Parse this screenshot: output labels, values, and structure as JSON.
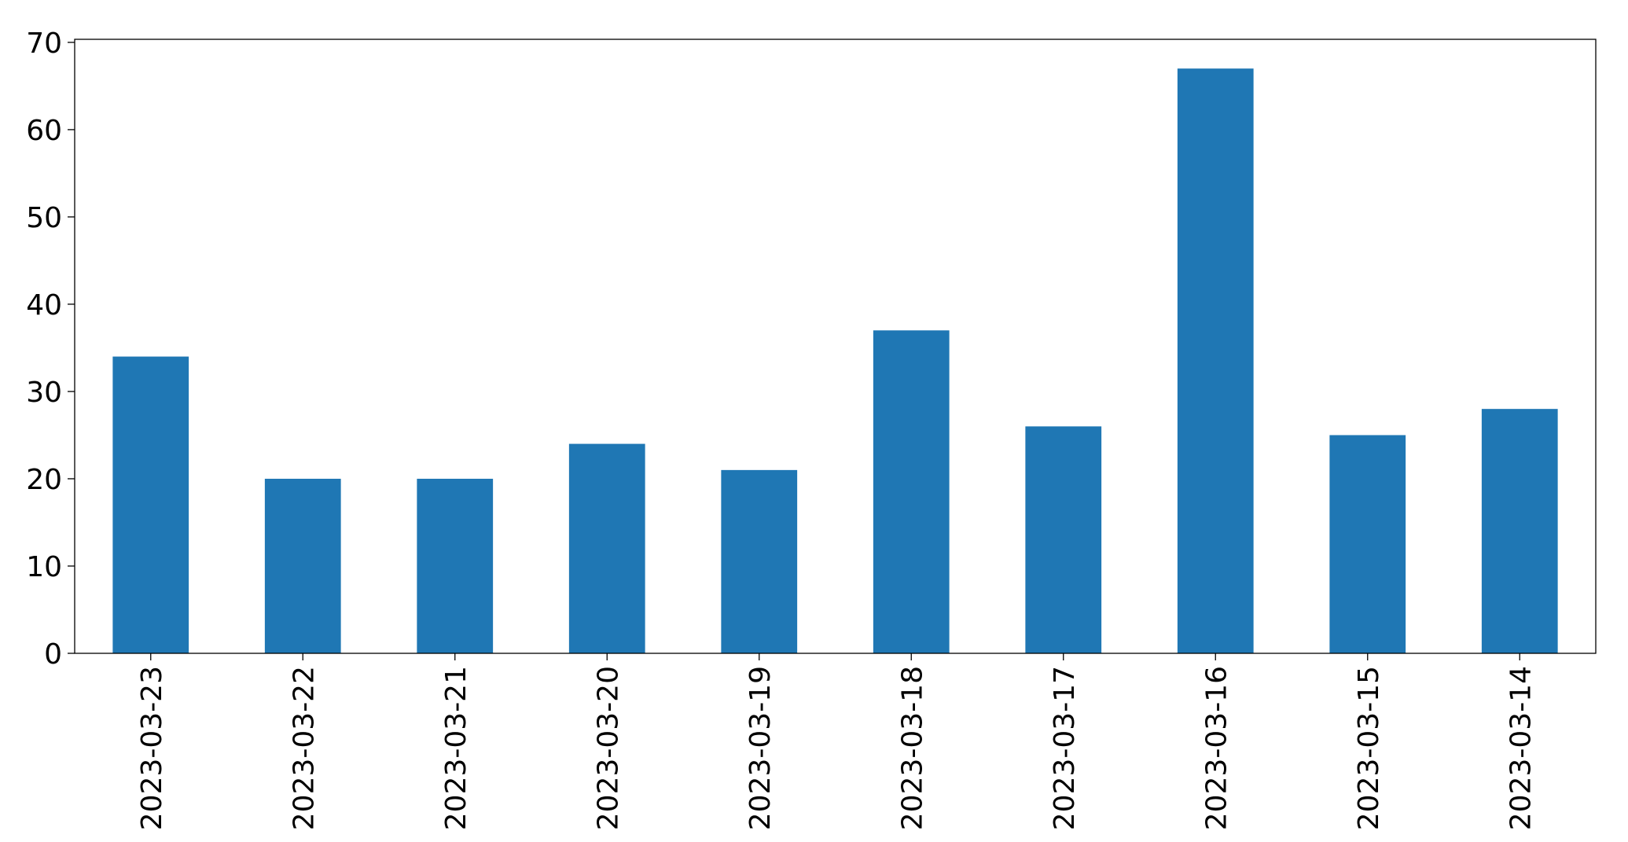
{
  "chart_data": {
    "type": "bar",
    "categories": [
      "2023-03-23",
      "2023-03-22",
      "2023-03-21",
      "2023-03-20",
      "2023-03-19",
      "2023-03-18",
      "2023-03-17",
      "2023-03-16",
      "2023-03-15",
      "2023-03-14"
    ],
    "values": [
      34,
      20,
      20,
      24,
      21,
      37,
      26,
      67,
      25,
      28
    ],
    "color": "#1f77b4",
    "ylim": [
      0,
      70.35
    ],
    "yticks": [
      0,
      10,
      20,
      30,
      40,
      50,
      60,
      70
    ],
    "grid": false
  }
}
